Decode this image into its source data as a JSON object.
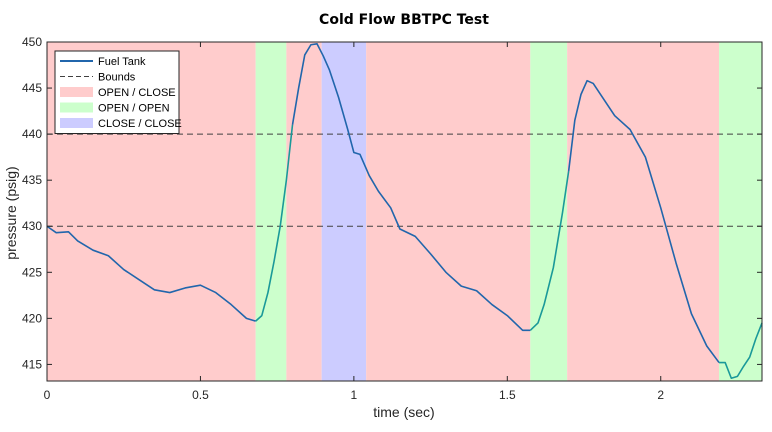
{
  "chart_data": {
    "type": "line",
    "title": "Cold Flow BBTPC Test",
    "xlabel": "time (sec)",
    "ylabel": "pressure (psig)",
    "xlim": [
      0,
      2.33
    ],
    "ylim": [
      413.2,
      450
    ],
    "xticks": [
      0,
      0.5,
      1,
      1.5,
      2
    ],
    "xtick_labels": [
      "0",
      "0.5",
      "1",
      "1.5",
      "2"
    ],
    "yticks": [
      415,
      420,
      425,
      430,
      435,
      440,
      445,
      450
    ],
    "ytick_labels": [
      "415",
      "420",
      "425",
      "430",
      "435",
      "440",
      "445",
      "450"
    ],
    "grid": false,
    "legend_position": "top-left",
    "colors": {
      "open_close": "#ffcccc",
      "open_open": "#ccffcc",
      "close_close": "#ccccff",
      "fuel_tank": "#2166ac",
      "fuel_tank_valve_open": "#1a9999",
      "bounds": "#404040"
    },
    "regions": [
      {
        "state": "OPEN / CLOSE",
        "x0": 0,
        "x1": 0.68
      },
      {
        "state": "OPEN / OPEN",
        "x0": 0.68,
        "x1": 0.78
      },
      {
        "state": "OPEN / CLOSE",
        "x0": 0.78,
        "x1": 0.895
      },
      {
        "state": "CLOSE / CLOSE",
        "x0": 0.895,
        "x1": 1.04
      },
      {
        "state": "OPEN / CLOSE",
        "x0": 1.04,
        "x1": 1.575
      },
      {
        "state": "OPEN / OPEN",
        "x0": 1.575,
        "x1": 1.695
      },
      {
        "state": "OPEN / CLOSE",
        "x0": 1.695,
        "x1": 2.19
      },
      {
        "state": "OPEN / OPEN",
        "x0": 2.19,
        "x1": 2.33
      }
    ],
    "bounds": [
      430,
      440
    ],
    "legend": [
      {
        "label": "Fuel Tank",
        "style": "line"
      },
      {
        "label": "Bounds",
        "style": "dashed"
      },
      {
        "label": "OPEN / CLOSE",
        "style": "patch"
      },
      {
        "label": "OPEN / OPEN",
        "style": "patch"
      },
      {
        "label": "CLOSE / CLOSE",
        "style": "patch"
      }
    ],
    "series": [
      {
        "name": "Fuel Tank",
        "x": [
          0,
          0.03,
          0.07,
          0.1,
          0.15,
          0.2,
          0.25,
          0.3,
          0.35,
          0.4,
          0.45,
          0.5,
          0.55,
          0.6,
          0.65,
          0.68,
          0.7,
          0.72,
          0.74,
          0.76,
          0.78,
          0.8,
          0.82,
          0.84,
          0.86,
          0.88,
          0.9,
          0.92,
          0.95,
          0.98,
          1.0,
          1.02,
          1.05,
          1.08,
          1.12,
          1.15,
          1.2,
          1.25,
          1.3,
          1.35,
          1.4,
          1.45,
          1.5,
          1.55,
          1.575,
          1.6,
          1.62,
          1.65,
          1.68,
          1.7,
          1.72,
          1.74,
          1.76,
          1.78,
          1.8,
          1.85,
          1.9,
          1.95,
          2.0,
          2.05,
          2.1,
          2.15,
          2.19,
          2.21,
          2.23,
          2.25,
          2.27,
          2.29,
          2.31,
          2.33
        ],
        "y": [
          430,
          429.3,
          429.4,
          428.4,
          427.4,
          426.8,
          425.3,
          424.2,
          423.1,
          422.8,
          423.3,
          423.6,
          422.8,
          421.5,
          420,
          419.7,
          420.3,
          422.8,
          426.2,
          430,
          435,
          441,
          445,
          448.6,
          449.7,
          449.8,
          448.5,
          447,
          444,
          440.5,
          438,
          437.8,
          435.5,
          433.8,
          432,
          429.7,
          428.9,
          427,
          425,
          423.5,
          423,
          421.5,
          420.3,
          418.7,
          418.7,
          419.5,
          421.5,
          425.5,
          431.5,
          436,
          441.5,
          444.3,
          445.8,
          445.5,
          444.5,
          442,
          440.5,
          437.5,
          432,
          426,
          420.5,
          417,
          415.2,
          415.2,
          413.5,
          413.7,
          414.8,
          415.8,
          417.8,
          419.5
        ]
      }
    ]
  }
}
